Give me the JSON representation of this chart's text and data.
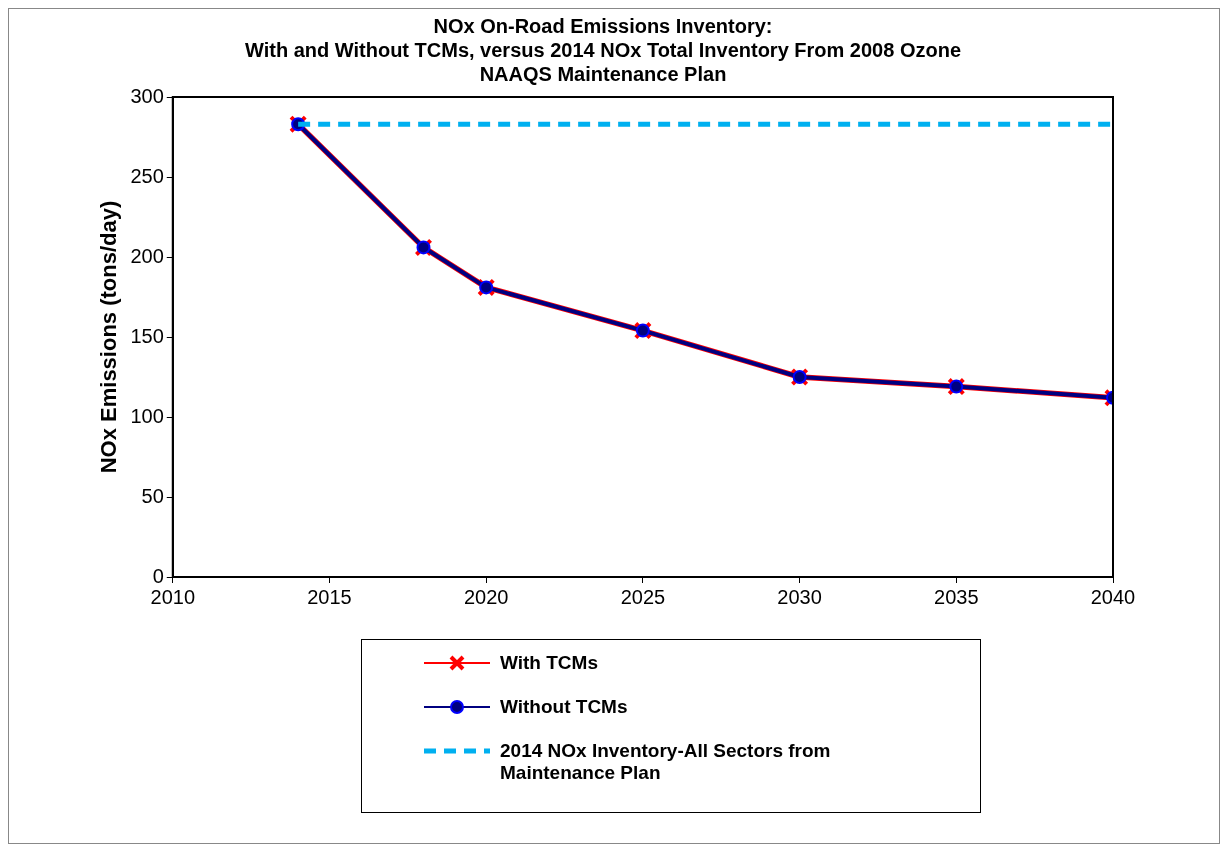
{
  "chart_data": {
    "type": "line",
    "title": "NOx On-Road Emissions Inventory:\nWith and Without TCMs, versus 2014 NOx Total Inventory From 2008 Ozone\nNAAQS Maintenance Plan",
    "ylabel": "NOx Emissions (tons/day)",
    "x": [
      2014,
      2018,
      2020,
      2025,
      2030,
      2035,
      2040
    ],
    "series": [
      {
        "name": "With TCMs",
        "color": "#ff0000",
        "marker": "cross",
        "values": [
          283,
          206,
          181,
          154,
          125,
          119,
          112
        ]
      },
      {
        "name": "Without TCMs",
        "color": "#000080",
        "marker": "circle",
        "values": [
          283,
          206,
          181,
          154,
          125,
          119,
          112
        ]
      },
      {
        "name": "2014 NOx Inventory-All Sectors from Maintenance Plan",
        "color": "#00b0f0",
        "marker": "none",
        "line_style": "dashed",
        "x": [
          2014,
          2040
        ],
        "values": [
          283,
          283
        ]
      }
    ],
    "xlim": [
      2010,
      2040
    ],
    "xticks": [
      2010,
      2015,
      2020,
      2025,
      2030,
      2035,
      2040
    ],
    "ylim": [
      0,
      300
    ],
    "yticks": [
      0,
      50,
      100,
      150,
      200,
      250,
      300
    ],
    "grid": false,
    "legend": "bottom"
  }
}
